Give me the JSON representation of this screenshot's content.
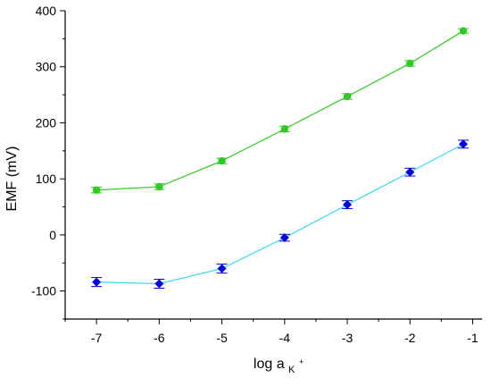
{
  "chart_data": {
    "type": "line",
    "title": "",
    "xlabel": {
      "main": "log a",
      "subscript": "K",
      "superscript": "+"
    },
    "ylabel": "EMF (mV)",
    "xlim": [
      -7.5,
      -0.85
    ],
    "ylim": [
      -150,
      400
    ],
    "xticks": [
      -7,
      -6,
      -5,
      -4,
      -3,
      -2,
      -1
    ],
    "xtick_labels": [
      "-7",
      "-6",
      "-5",
      "-4",
      "-3",
      "-2",
      "-1"
    ],
    "yticks": [
      -100,
      0,
      100,
      200,
      300,
      400
    ],
    "ytick_labels": [
      "-100",
      "0",
      "100",
      "200",
      "300",
      "400"
    ],
    "grid": false,
    "legend": "none",
    "series": [
      {
        "color": "#2ecc1f",
        "line_color": "#2ecc1f",
        "marker": "circle",
        "x": [
          -7,
          -6,
          -5,
          -4,
          -3,
          -2,
          -1.15
        ],
        "y": [
          80,
          86,
          132,
          189,
          247,
          306,
          364
        ],
        "err": [
          5,
          5,
          5,
          5,
          5,
          5,
          4
        ]
      },
      {
        "color": "#0000dd",
        "line_color": "#33ddee",
        "marker": "diamond",
        "x": [
          -7,
          -6,
          -5,
          -4,
          -3,
          -2,
          -1.15
        ],
        "y": [
          -84,
          -87,
          -60,
          -5,
          54,
          112,
          162
        ],
        "err": [
          8,
          8,
          8,
          6,
          7,
          7,
          7
        ]
      }
    ]
  }
}
